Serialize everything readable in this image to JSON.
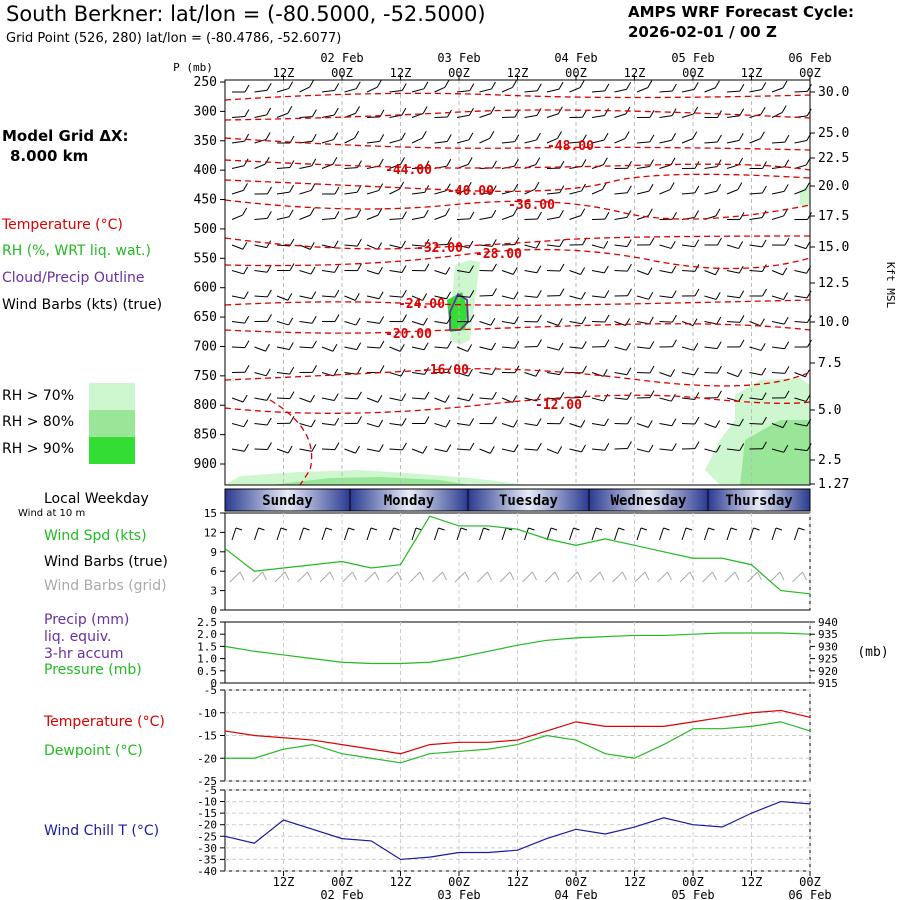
{
  "header": {
    "title": "South Berkner:  lat/lon = (-80.5000, -52.5000)",
    "subtitle": "Grid Point (526, 280) lat/lon = (-80.4786, -52.6077)",
    "cycle_line1": "AMPS WRF Forecast Cycle:",
    "cycle_line2": "2026-02-01 / 00  Z"
  },
  "left_legend": {
    "model_grid_line1": "Model Grid ΔX:",
    "model_grid_line2": "8.000 km",
    "temperature": "Temperature (°C)",
    "rh": "RH (%, WRT liq. wat.)",
    "cloud": "Cloud/Precip Outline",
    "wind_barbs": "Wind Barbs (kts) (true)",
    "rh_levels": [
      "RH > 70%",
      "RH > 80%",
      "RH > 90%"
    ],
    "local_weekday": "Local Weekday",
    "wind_at": "Wind at 10 m",
    "wind_spd": "Wind Spd (kts)",
    "wind_barbs_true": "Wind Barbs (true)",
    "wind_barbs_grid": "Wind Barbs (grid)",
    "precip": "Precip (mm)",
    "liq_equiv": "liq. equiv.",
    "accum": "3-hr accum",
    "pressure": "Pressure (mb)",
    "temperature2": "Temperature (°C)",
    "dewpoint": "Dewpoint (°C)",
    "wind_chill": "Wind Chill T (°C)"
  },
  "colors": {
    "temp": "#dd0000",
    "rh": "#22bb22",
    "cloud": "#6a2fa0",
    "wind": "#000000",
    "wind_grid": "#aaaaaa",
    "chill": "#1a1aa0",
    "rh70": "#cff7cf",
    "rh80": "#99e699",
    "rh90": "#33dd33"
  },
  "chart_data": [
    {
      "type": "time-height cross-section",
      "x_ticks_top": [
        "12Z",
        "00Z",
        "12Z",
        "00Z",
        "12Z",
        "00Z",
        "12Z",
        "00Z",
        "12Z",
        "00Z"
      ],
      "date_labels": [
        "02 Feb",
        "03 Feb",
        "04 Feb",
        "05 Feb",
        "06 Feb"
      ],
      "y_label": "P (mb)",
      "pressure_ticks": [
        250,
        300,
        350,
        400,
        450,
        500,
        550,
        600,
        650,
        700,
        750,
        800,
        850,
        900
      ],
      "right_label": "Kft MSL",
      "height_ticks": [
        "30.0",
        "25.0",
        "22.5",
        "20.0",
        "17.5",
        "15.0",
        "12.5",
        "10.0",
        "7.5",
        "5.0",
        "2.5",
        "1.27"
      ],
      "temperature_contours": [
        "-48.00",
        "-44.00",
        "-40.00",
        "-36.00",
        "-32.00",
        "-28.00",
        "-24.00",
        "-20.00",
        "-16.00",
        "-12.00"
      ],
      "rh_thresholds": [
        70,
        80,
        90
      ]
    },
    {
      "type": "weekday bar",
      "days": [
        "Sunday",
        "Monday",
        "Tuesday",
        "Wednesday",
        "Thursday"
      ]
    },
    {
      "type": "line",
      "title": "Wind Spd (kts)",
      "y_ticks": [
        0,
        3,
        6,
        9,
        12,
        15
      ],
      "ylim": [
        0,
        15
      ],
      "x_hours": [
        0,
        6,
        12,
        18,
        24,
        30,
        36,
        42,
        48,
        54,
        60,
        66,
        72,
        78,
        84,
        90,
        96,
        102,
        108,
        114,
        120
      ],
      "values": [
        9.5,
        6,
        6.5,
        7,
        7.5,
        6.5,
        7,
        14.5,
        13,
        13,
        12.5,
        11,
        10,
        11,
        10,
        9,
        8,
        8,
        7,
        3,
        2.5
      ]
    },
    {
      "type": "line",
      "title": "Pressure (mb)",
      "precip_ticks": [
        "0",
        "0.5",
        "1.0",
        "1.5",
        "2.0",
        "2.5"
      ],
      "pressure_ticks": [
        915,
        920,
        925,
        930,
        935,
        940
      ],
      "ylim": [
        915,
        940
      ],
      "precip_values": [],
      "x_hours": [
        0,
        6,
        12,
        18,
        24,
        30,
        36,
        42,
        48,
        54,
        60,
        66,
        72,
        78,
        84,
        90,
        96,
        102,
        108,
        114,
        120
      ],
      "values": [
        930,
        928,
        926.5,
        925,
        923.5,
        923,
        923,
        923.5,
        925.5,
        928,
        930.5,
        932.5,
        933.5,
        934,
        934.5,
        934.5,
        935,
        935.5,
        935.5,
        935.5,
        935
      ]
    },
    {
      "type": "line",
      "title": "Temperature / Dewpoint (°C)",
      "y_ticks": [
        -25,
        -20,
        -15,
        -10,
        -5
      ],
      "ylim": [
        -25,
        -5
      ],
      "x_hours": [
        0,
        6,
        12,
        18,
        24,
        30,
        36,
        42,
        48,
        54,
        60,
        66,
        72,
        78,
        84,
        90,
        96,
        102,
        108,
        114,
        120
      ],
      "series": [
        {
          "name": "Temperature",
          "values": [
            -14,
            -15,
            -15.5,
            -16,
            -17,
            -18,
            -19,
            -17,
            -16.5,
            -16.5,
            -16,
            -14,
            -12,
            -13,
            -13,
            -13,
            -12,
            -11,
            -10,
            -9.5,
            -11
          ]
        },
        {
          "name": "Dewpoint",
          "values": [
            -20,
            -20,
            -18,
            -17,
            -19,
            -20,
            -21,
            -19,
            -18.5,
            -18,
            -17,
            -15,
            -16,
            -19,
            -20,
            -17,
            -13.5,
            -13.5,
            -13,
            -12,
            -14
          ]
        }
      ]
    },
    {
      "type": "line",
      "title": "Wind Chill T (°C)",
      "y_ticks": [
        -40,
        -35,
        -30,
        -25,
        -20,
        -15,
        -10,
        -5
      ],
      "ylim": [
        -40,
        -5
      ],
      "x_hours": [
        0,
        6,
        12,
        18,
        24,
        30,
        36,
        42,
        48,
        54,
        60,
        66,
        72,
        78,
        84,
        90,
        96,
        102,
        108,
        114,
        120
      ],
      "values": [
        -25,
        -28,
        -18,
        -22,
        -26,
        -27,
        -35,
        -34,
        -32,
        -32,
        -31,
        -26,
        -22,
        -24,
        -21,
        -17,
        -20,
        -21,
        -15,
        -10,
        -11
      ]
    }
  ],
  "bottom_axis": {
    "x_ticks": [
      "12Z",
      "00Z",
      "12Z",
      "00Z",
      "12Z",
      "00Z",
      "12Z",
      "00Z",
      "12Z",
      "00Z"
    ],
    "date_labels": [
      "02 Feb",
      "03 Feb",
      "04 Feb",
      "05 Feb",
      "06 Feb"
    ]
  }
}
